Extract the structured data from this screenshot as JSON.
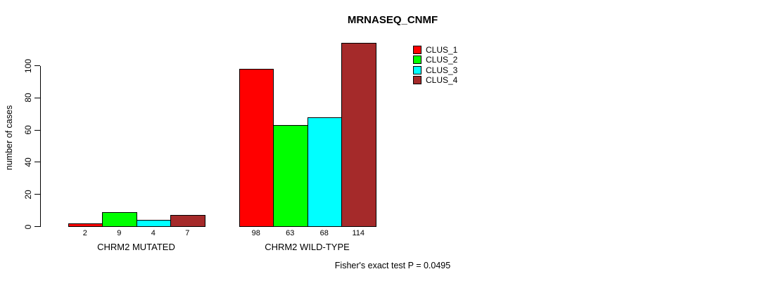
{
  "title": "MRNASEQ_CNMF",
  "footer": "Fisher's exact test P = 0.0495",
  "y_axis": {
    "label": "number of cases",
    "ticks": [
      "0",
      "20",
      "40",
      "60",
      "80",
      "100"
    ]
  },
  "legend": {
    "entries": [
      {
        "label": "CLUS_1",
        "color": "#FF0000"
      },
      {
        "label": "CLUS_2",
        "color": "#00FF00"
      },
      {
        "label": "CLUS_3",
        "color": "#00FFFF"
      },
      {
        "label": "CLUS_4",
        "color": "#A52A2A"
      }
    ]
  },
  "chart_data": {
    "type": "bar",
    "title": "MRNASEQ_CNMF",
    "xlabel": "",
    "ylabel": "number of cases",
    "ylim": [
      0,
      100
    ],
    "grid": false,
    "legend_position": "top-right-inside",
    "categories": [
      "CHRM2 MUTATED",
      "CHRM2 WILD-TYPE"
    ],
    "series": [
      {
        "name": "CLUS_1",
        "color": "#FF0000",
        "values": [
          2,
          98
        ]
      },
      {
        "name": "CLUS_2",
        "color": "#00FF00",
        "values": [
          9,
          63
        ]
      },
      {
        "name": "CLUS_3",
        "color": "#00FFFF",
        "values": [
          4,
          68
        ]
      },
      {
        "name": "CLUS_4",
        "color": "#A52A2A",
        "values": [
          7,
          114
        ]
      }
    ],
    "bar_value_labels": [
      [
        "2",
        "9",
        "4",
        "7"
      ],
      [
        "98",
        "63",
        "68",
        "114"
      ]
    ],
    "annotation": "Fisher's exact test P = 0.0495"
  }
}
